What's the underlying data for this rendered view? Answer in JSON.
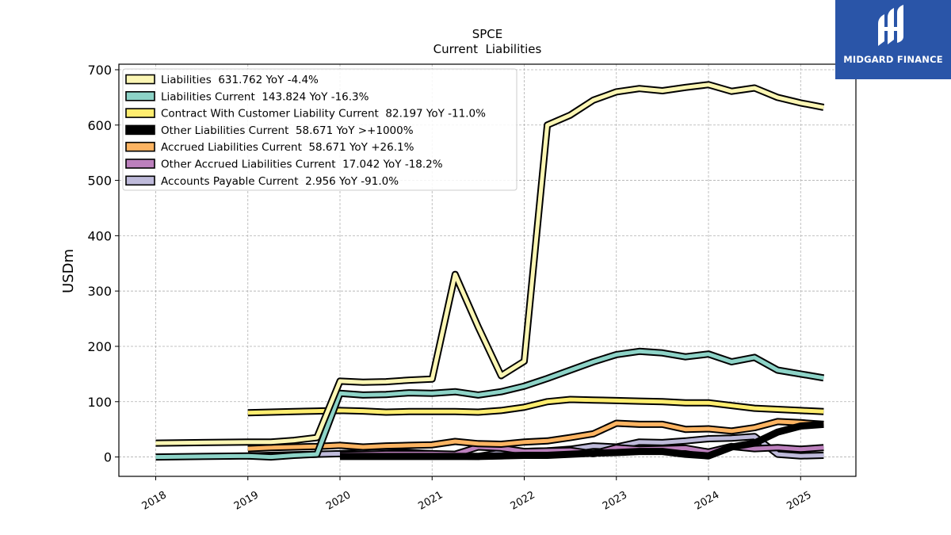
{
  "brand": {
    "name": "MIDGARD FINANCE",
    "bg_color": "#2a55a8"
  },
  "chart_data": {
    "type": "line",
    "title": "SPCE",
    "subtitle": "Current  Liabilities",
    "xlabel": "",
    "ylabel": "USDm",
    "xlim": [
      2017.6,
      2025.6
    ],
    "ylim": [
      -35,
      710
    ],
    "x_ticks": [
      2018,
      2019,
      2020,
      2021,
      2022,
      2023,
      2024,
      2025
    ],
    "y_ticks": [
      0,
      100,
      200,
      300,
      400,
      500,
      600,
      700
    ],
    "grid": true,
    "legend_position": "top-left",
    "series": [
      {
        "name": "Liabilities  631.762 YoY -4.4%",
        "color": "#fbf6b4",
        "x": [
          2018.0,
          2019.0,
          2019.25,
          2019.5,
          2019.75,
          2020.0,
          2020.25,
          2020.5,
          2020.75,
          2021.0,
          2021.25,
          2021.5,
          2021.75,
          2022.0,
          2022.25,
          2022.5,
          2022.75,
          2023.0,
          2023.25,
          2023.5,
          2023.75,
          2024.0,
          2024.25,
          2024.5,
          2024.75,
          2025.0,
          2025.25
        ],
        "values": [
          25,
          27,
          27,
          30,
          35,
          137,
          135,
          136,
          139,
          141,
          330,
          235,
          147,
          173,
          600,
          618,
          645,
          660,
          666,
          662,
          668,
          673,
          661,
          667,
          650,
          640,
          632
        ]
      },
      {
        "name": "Liabilities Current  143.824 YoY -16.3%",
        "color": "#8dd3c7",
        "x": [
          2018.0,
          2019.0,
          2019.25,
          2019.5,
          2019.75,
          2020.0,
          2020.25,
          2020.5,
          2020.75,
          2021.0,
          2021.25,
          2021.5,
          2021.75,
          2022.0,
          2022.25,
          2022.5,
          2022.75,
          2023.0,
          2023.25,
          2023.5,
          2023.75,
          2024.0,
          2024.25,
          2024.5,
          2024.75,
          2025.0,
          2025.25
        ],
        "values": [
          0,
          2,
          0,
          3,
          5,
          115,
          112,
          113,
          116,
          115,
          118,
          112,
          118,
          128,
          142,
          157,
          172,
          185,
          191,
          188,
          181,
          186,
          172,
          180,
          157,
          150,
          143
        ]
      },
      {
        "name": "Contract With Customer Liability Current  82.197 YoY -11.0%",
        "color": "#ffed6f",
        "x": [
          2019.0,
          2019.25,
          2019.5,
          2019.75,
          2020.0,
          2020.25,
          2020.5,
          2020.75,
          2021.0,
          2021.25,
          2021.5,
          2021.75,
          2022.0,
          2022.25,
          2022.5,
          2022.75,
          2023.0,
          2023.25,
          2023.5,
          2023.75,
          2024.0,
          2024.25,
          2024.5,
          2024.75,
          2025.0,
          2025.25
        ],
        "values": [
          80,
          81,
          82,
          83,
          84,
          83,
          81,
          82,
          82,
          82,
          81,
          84,
          90,
          100,
          104,
          103,
          102,
          101,
          100,
          98,
          98,
          93,
          88,
          86,
          84,
          82
        ]
      },
      {
        "name": "Other Liabilities Current  58.671 YoY >+1000%",
        "color": "#000000",
        "x": [
          2020.0,
          2020.25,
          2020.5,
          2020.75,
          2021.0,
          2021.25,
          2021.5,
          2021.75,
          2022.0,
          2022.25,
          2022.5,
          2022.75,
          2023.0,
          2023.25,
          2023.5,
          2023.75,
          2024.0,
          2024.25,
          2024.5,
          2024.75,
          2025.0,
          2025.25
        ],
        "values": [
          1,
          1,
          1,
          1,
          1,
          1,
          1,
          2,
          3,
          3,
          5,
          7,
          8,
          10,
          10,
          5,
          2,
          18,
          25,
          45,
          56,
          59
        ]
      },
      {
        "name": "Accrued Liabilities Current  58.671 YoY +26.1%",
        "color": "#fdb462",
        "x": [
          2019.0,
          2019.25,
          2019.5,
          2019.75,
          2020.0,
          2020.25,
          2020.5,
          2020.75,
          2021.0,
          2021.25,
          2021.5,
          2021.75,
          2022.0,
          2022.25,
          2022.5,
          2022.75,
          2023.0,
          2023.25,
          2023.5,
          2023.75,
          2024.0,
          2024.25,
          2024.5,
          2024.75,
          2025.0,
          2025.25
        ],
        "values": [
          15,
          17,
          18,
          19,
          21,
          18,
          20,
          21,
          22,
          28,
          24,
          23,
          27,
          29,
          35,
          42,
          61,
          59,
          59,
          50,
          51,
          47,
          53,
          64,
          62,
          59
        ]
      },
      {
        "name": "Other Accrued Liabilities Current  17.042 YoY -18.2%",
        "color": "#bc80bd",
        "x": [
          2020.0,
          2020.25,
          2020.5,
          2020.75,
          2021.0,
          2021.25,
          2021.5,
          2021.75,
          2022.0,
          2022.25,
          2022.5,
          2022.75,
          2023.0,
          2023.25,
          2023.5,
          2023.75,
          2024.0,
          2024.25,
          2024.5,
          2024.75,
          2025.0,
          2025.25
        ],
        "values": [
          4,
          5,
          6,
          6,
          6,
          5,
          18,
          16,
          10,
          11,
          12,
          6,
          17,
          14,
          15,
          16,
          9,
          19,
          15,
          17,
          14,
          17
        ]
      },
      {
        "name": "Accounts Payable Current  2.956 YoY -91.0%",
        "color": "#bebada",
        "x": [
          2019.0,
          2019.25,
          2019.5,
          2019.75,
          2020.0,
          2020.25,
          2020.5,
          2020.75,
          2021.0,
          2021.25,
          2021.5,
          2021.75,
          2022.0,
          2022.25,
          2022.5,
          2022.75,
          2023.0,
          2023.25,
          2023.5,
          2023.75,
          2024.0,
          2024.25,
          2024.5,
          2024.75,
          2025.0,
          2025.25
        ],
        "values": [
          2,
          3,
          4,
          5,
          6,
          8,
          9,
          8,
          6,
          2,
          1,
          8,
          10,
          11,
          14,
          20,
          18,
          27,
          26,
          29,
          33,
          34,
          37,
          5,
          2,
          3
        ]
      }
    ]
  }
}
